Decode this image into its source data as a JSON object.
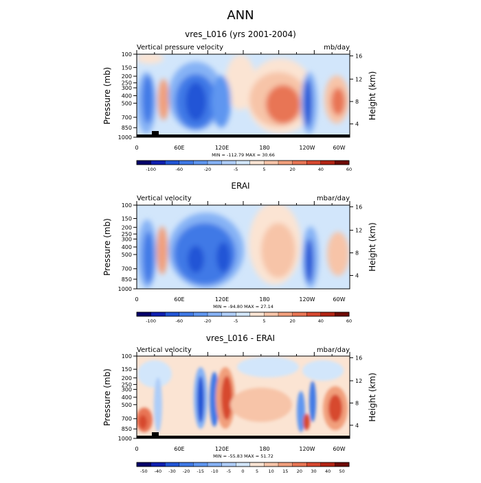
{
  "title": "ANN",
  "colormap": [
    "#04006a",
    "#0f1fb0",
    "#2155d6",
    "#3f79e6",
    "#5f96f0",
    "#86b2f5",
    "#aecdf8",
    "#d2e6fb",
    "#fbe4d3",
    "#f7c4a8",
    "#f19f7c",
    "#e87554",
    "#d7482f",
    "#b32414",
    "#6e0a04"
  ],
  "chart_data": [
    {
      "type": "heatmap",
      "title": "vres_L016 (yrs 2001-2004)",
      "left_label": "Vertical pressure velocity",
      "right_label": "mb/day",
      "ylabel": "Pressure (mb)",
      "ylabel_right": "Height (km)",
      "x_ticks": [
        "0",
        "60E",
        "120E",
        "180",
        "120W",
        "60W"
      ],
      "y_ticks": [
        "100",
        "150",
        "200",
        "250",
        "300",
        "400",
        "500",
        "700",
        "850",
        "1000"
      ],
      "y_ticks_right": [
        "16",
        "12",
        "8",
        "4"
      ],
      "stats": "MIN = -112.79  MAX = 30.66",
      "colorbar_labels": [
        "-100",
        "-60",
        "-20",
        "-5",
        "5",
        "20",
        "40",
        "60"
      ],
      "has_terrain": true
    },
    {
      "type": "heatmap",
      "title": "ERAI",
      "left_label": "Vertical velocity",
      "right_label": "mbar/day",
      "ylabel": "Pressure (mb)",
      "ylabel_right": "Height (km)",
      "x_ticks": [
        "0",
        "60E",
        "120E",
        "180",
        "120W",
        "60W"
      ],
      "y_ticks": [
        "100",
        "150",
        "200",
        "250",
        "300",
        "400",
        "500",
        "700",
        "850",
        "1000"
      ],
      "y_ticks_right": [
        "16",
        "12",
        "8",
        "4"
      ],
      "stats": "MIN = -94.80  MAX = 27.14",
      "colorbar_labels": [
        "-100",
        "-60",
        "-20",
        "-5",
        "5",
        "20",
        "40",
        "60"
      ],
      "has_terrain": false
    },
    {
      "type": "heatmap",
      "title": "vres_L016 - ERAI",
      "left_label": "Vertical velocity",
      "right_label": "mbar/day",
      "ylabel": "Pressure (mb)",
      "ylabel_right": "Height (km)",
      "x_ticks": [
        "0",
        "60E",
        "120E",
        "180",
        "120W",
        "60W"
      ],
      "y_ticks": [
        "100",
        "150",
        "200",
        "250",
        "300",
        "400",
        "500",
        "700",
        "850",
        "1000"
      ],
      "y_ticks_right": [
        "16",
        "12",
        "8",
        "4"
      ],
      "stats": "MIN = -55.83  MAX = 51.72",
      "colorbar_labels": [
        "-50",
        "-40",
        "-30",
        "-20",
        "-15",
        "-10",
        "-5",
        "0",
        "5",
        "10",
        "15",
        "20",
        "30",
        "40",
        "50"
      ],
      "has_terrain": true
    }
  ]
}
